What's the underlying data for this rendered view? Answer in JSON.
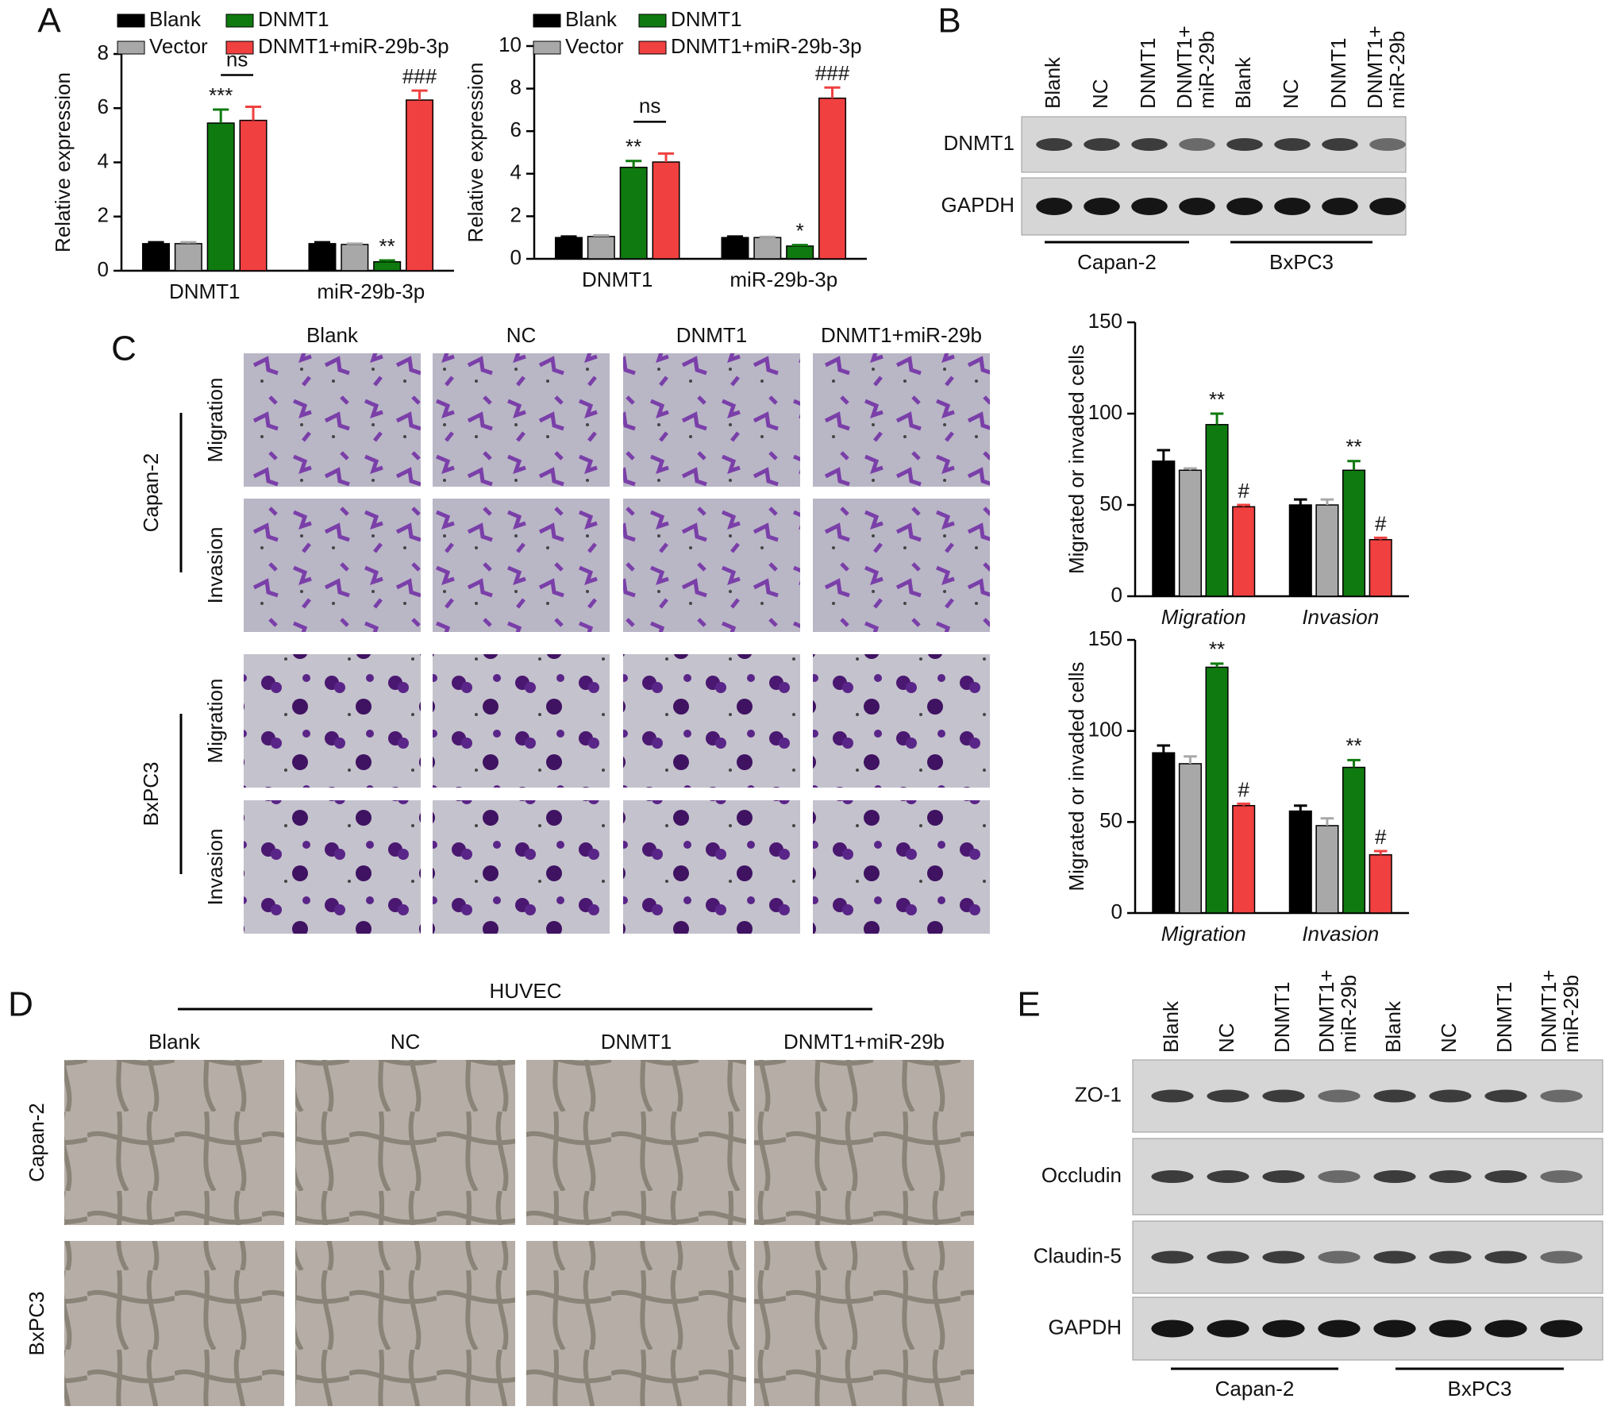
{
  "panel_labels": [
    "A",
    "B",
    "C",
    "D",
    "E"
  ],
  "chart_data": [
    {
      "type": "bar",
      "y_label": "Relative expression",
      "categories": [
        "DNMT1",
        "miR-29b-3p"
      ],
      "ylim": [
        0,
        8
      ],
      "yticks": [
        0,
        2,
        4,
        6,
        8
      ],
      "legend": "top",
      "comparison_label": "ns",
      "series": [
        {
          "name": "Blank",
          "color": "#000000",
          "values": [
            1.0,
            1.0
          ],
          "errors": [
            0.05,
            0.05
          ],
          "significance": [
            null,
            null
          ]
        },
        {
          "name": "Vector",
          "color": "#a8a8a8",
          "values": [
            1.0,
            0.97
          ],
          "errors": [
            0.05,
            0.03
          ],
          "significance": [
            null,
            null
          ]
        },
        {
          "name": "DNMT1",
          "color": "#0f7a0f",
          "values": [
            5.45,
            0.33
          ],
          "errors": [
            0.5,
            0.05
          ],
          "significance": [
            "***",
            "**"
          ]
        },
        {
          "name": "DNMT1+miR-29b-3p",
          "color": "#f04040",
          "values": [
            5.55,
            6.3
          ],
          "errors": [
            0.5,
            0.35
          ],
          "significance": [
            null,
            "###"
          ]
        }
      ]
    },
    {
      "type": "bar",
      "y_label": "Relative expression",
      "categories": [
        "DNMT1",
        "miR-29b-3p"
      ],
      "ylim": [
        0,
        10
      ],
      "yticks": [
        0,
        2,
        4,
        6,
        8,
        10
      ],
      "legend": "top",
      "comparison_label": "ns",
      "series": [
        {
          "name": "Blank",
          "color": "#000000",
          "values": [
            1.0,
            1.0
          ],
          "errors": [
            0.05,
            0.05
          ],
          "significance": [
            null,
            null
          ]
        },
        {
          "name": "Vector",
          "color": "#a8a8a8",
          "values": [
            1.05,
            1.0
          ],
          "errors": [
            0.05,
            0.03
          ],
          "significance": [
            null,
            null
          ]
        },
        {
          "name": "DNMT1",
          "color": "#0f7a0f",
          "values": [
            4.3,
            0.6
          ],
          "errors": [
            0.3,
            0.05
          ],
          "significance": [
            "**",
            "*"
          ]
        },
        {
          "name": "DNMT1+miR-29b-3p",
          "color": "#f04040",
          "values": [
            4.55,
            7.55
          ],
          "errors": [
            0.4,
            0.5
          ],
          "significance": [
            null,
            "###"
          ]
        }
      ]
    },
    {
      "type": "bar",
      "y_label": "Migrated or invaded cells",
      "categories": [
        "Migration",
        "Invasion"
      ],
      "ylim": [
        0,
        150
      ],
      "yticks": [
        0,
        50,
        100,
        150
      ],
      "series": [
        {
          "color": "#000000",
          "values": [
            74,
            50
          ],
          "errors": [
            6,
            3
          ],
          "significance": [
            null,
            null
          ]
        },
        {
          "color": "#a8a8a8",
          "values": [
            69,
            50
          ],
          "errors": [
            1,
            3
          ],
          "significance": [
            null,
            null
          ]
        },
        {
          "color": "#0f7a0f",
          "values": [
            94,
            69
          ],
          "errors": [
            6,
            5
          ],
          "significance": [
            "**",
            "**"
          ]
        },
        {
          "color": "#f04040",
          "values": [
            49,
            31
          ],
          "errors": [
            1,
            1
          ],
          "significance": [
            "#",
            "#"
          ]
        }
      ]
    },
    {
      "type": "bar",
      "y_label": "Migrated or invaded cells",
      "categories": [
        "Migration",
        "Invasion"
      ],
      "ylim": [
        0,
        150
      ],
      "yticks": [
        0,
        50,
        100,
        150
      ],
      "series": [
        {
          "color": "#000000",
          "values": [
            88,
            56
          ],
          "errors": [
            4,
            3
          ],
          "significance": [
            null,
            null
          ]
        },
        {
          "color": "#a8a8a8",
          "values": [
            82,
            48
          ],
          "errors": [
            4,
            4
          ],
          "significance": [
            null,
            null
          ]
        },
        {
          "color": "#0f7a0f",
          "values": [
            135,
            80
          ],
          "errors": [
            2,
            4
          ],
          "significance": [
            "**",
            "**"
          ]
        },
        {
          "color": "#f04040",
          "values": [
            59,
            32
          ],
          "errors": [
            1,
            2
          ],
          "significance": [
            "#",
            "#"
          ]
        }
      ]
    }
  ],
  "western_blot_b": {
    "lanes": [
      [
        "Blank"
      ],
      [
        "NC"
      ],
      [
        "DNMT1"
      ],
      [
        "DNMT1+",
        "miR-29b"
      ],
      [
        "Blank"
      ],
      [
        "NC"
      ],
      [
        "DNMT1"
      ],
      [
        "DNMT1+",
        "miR-29b"
      ]
    ],
    "rows": [
      "DNMT1",
      "GAPDH"
    ],
    "groups": [
      "Capan-2",
      "BxPC3"
    ]
  },
  "panel_c": {
    "columns": [
      "Blank",
      "NC",
      "DNMT1",
      "DNMT1+miR-29b"
    ],
    "cell_lines": [
      "Capan-2",
      "BxPC3"
    ],
    "assays": [
      "Migration",
      "Invasion"
    ]
  },
  "panel_d": {
    "title": "HUVEC",
    "columns": [
      "Blank",
      "NC",
      "DNMT1",
      "DNMT1+miR-29b"
    ],
    "rows": [
      "Capan-2",
      "BxPC3"
    ]
  },
  "western_blot_e": {
    "lanes": [
      [
        "Blank"
      ],
      [
        "NC"
      ],
      [
        "DNMT1"
      ],
      [
        "DNMT1+",
        "miR-29b"
      ],
      [
        "Blank"
      ],
      [
        "NC"
      ],
      [
        "DNMT1"
      ],
      [
        "DNMT1+",
        "miR-29b"
      ]
    ],
    "rows": [
      "ZO-1",
      "Occludin",
      "Claudin-5",
      "GAPDH"
    ],
    "groups": [
      "Capan-2",
      "BxPC3"
    ]
  }
}
